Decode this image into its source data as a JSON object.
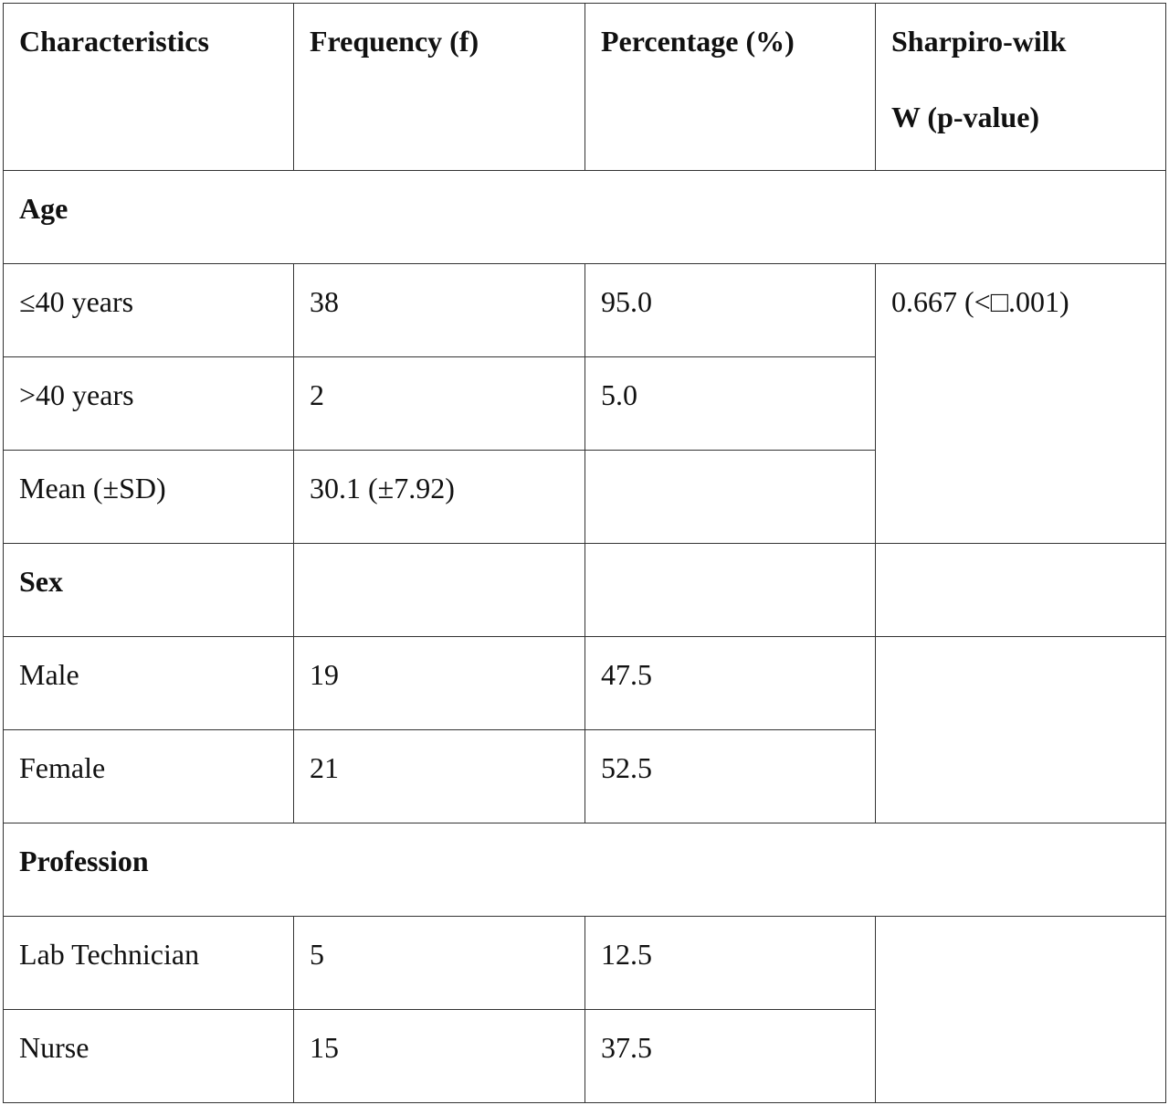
{
  "table": {
    "header": [
      [
        "Characteristics"
      ],
      [
        "Frequency (f)"
      ],
      [
        "Percentage (%)"
      ],
      [
        "Sharpiro-wilk",
        "W (p-value)"
      ]
    ],
    "rows": [
      [
        "Age"
      ],
      [
        "≤40 years",
        "38",
        "95.0",
        "0.667 (<□.001)"
      ],
      [
        ">40 years",
        "2",
        "5.0"
      ],
      [
        "Mean (±SD)",
        "30.1 (±7.92)"
      ],
      [
        "Sex"
      ],
      [
        "Male",
        "19",
        "47.5"
      ],
      [
        "Female",
        "21",
        "52.5"
      ],
      [
        "Profession"
      ],
      [
        "Lab Technician",
        "5",
        "12.5"
      ],
      [
        "Nurse",
        "15",
        "37.5"
      ]
    ]
  }
}
